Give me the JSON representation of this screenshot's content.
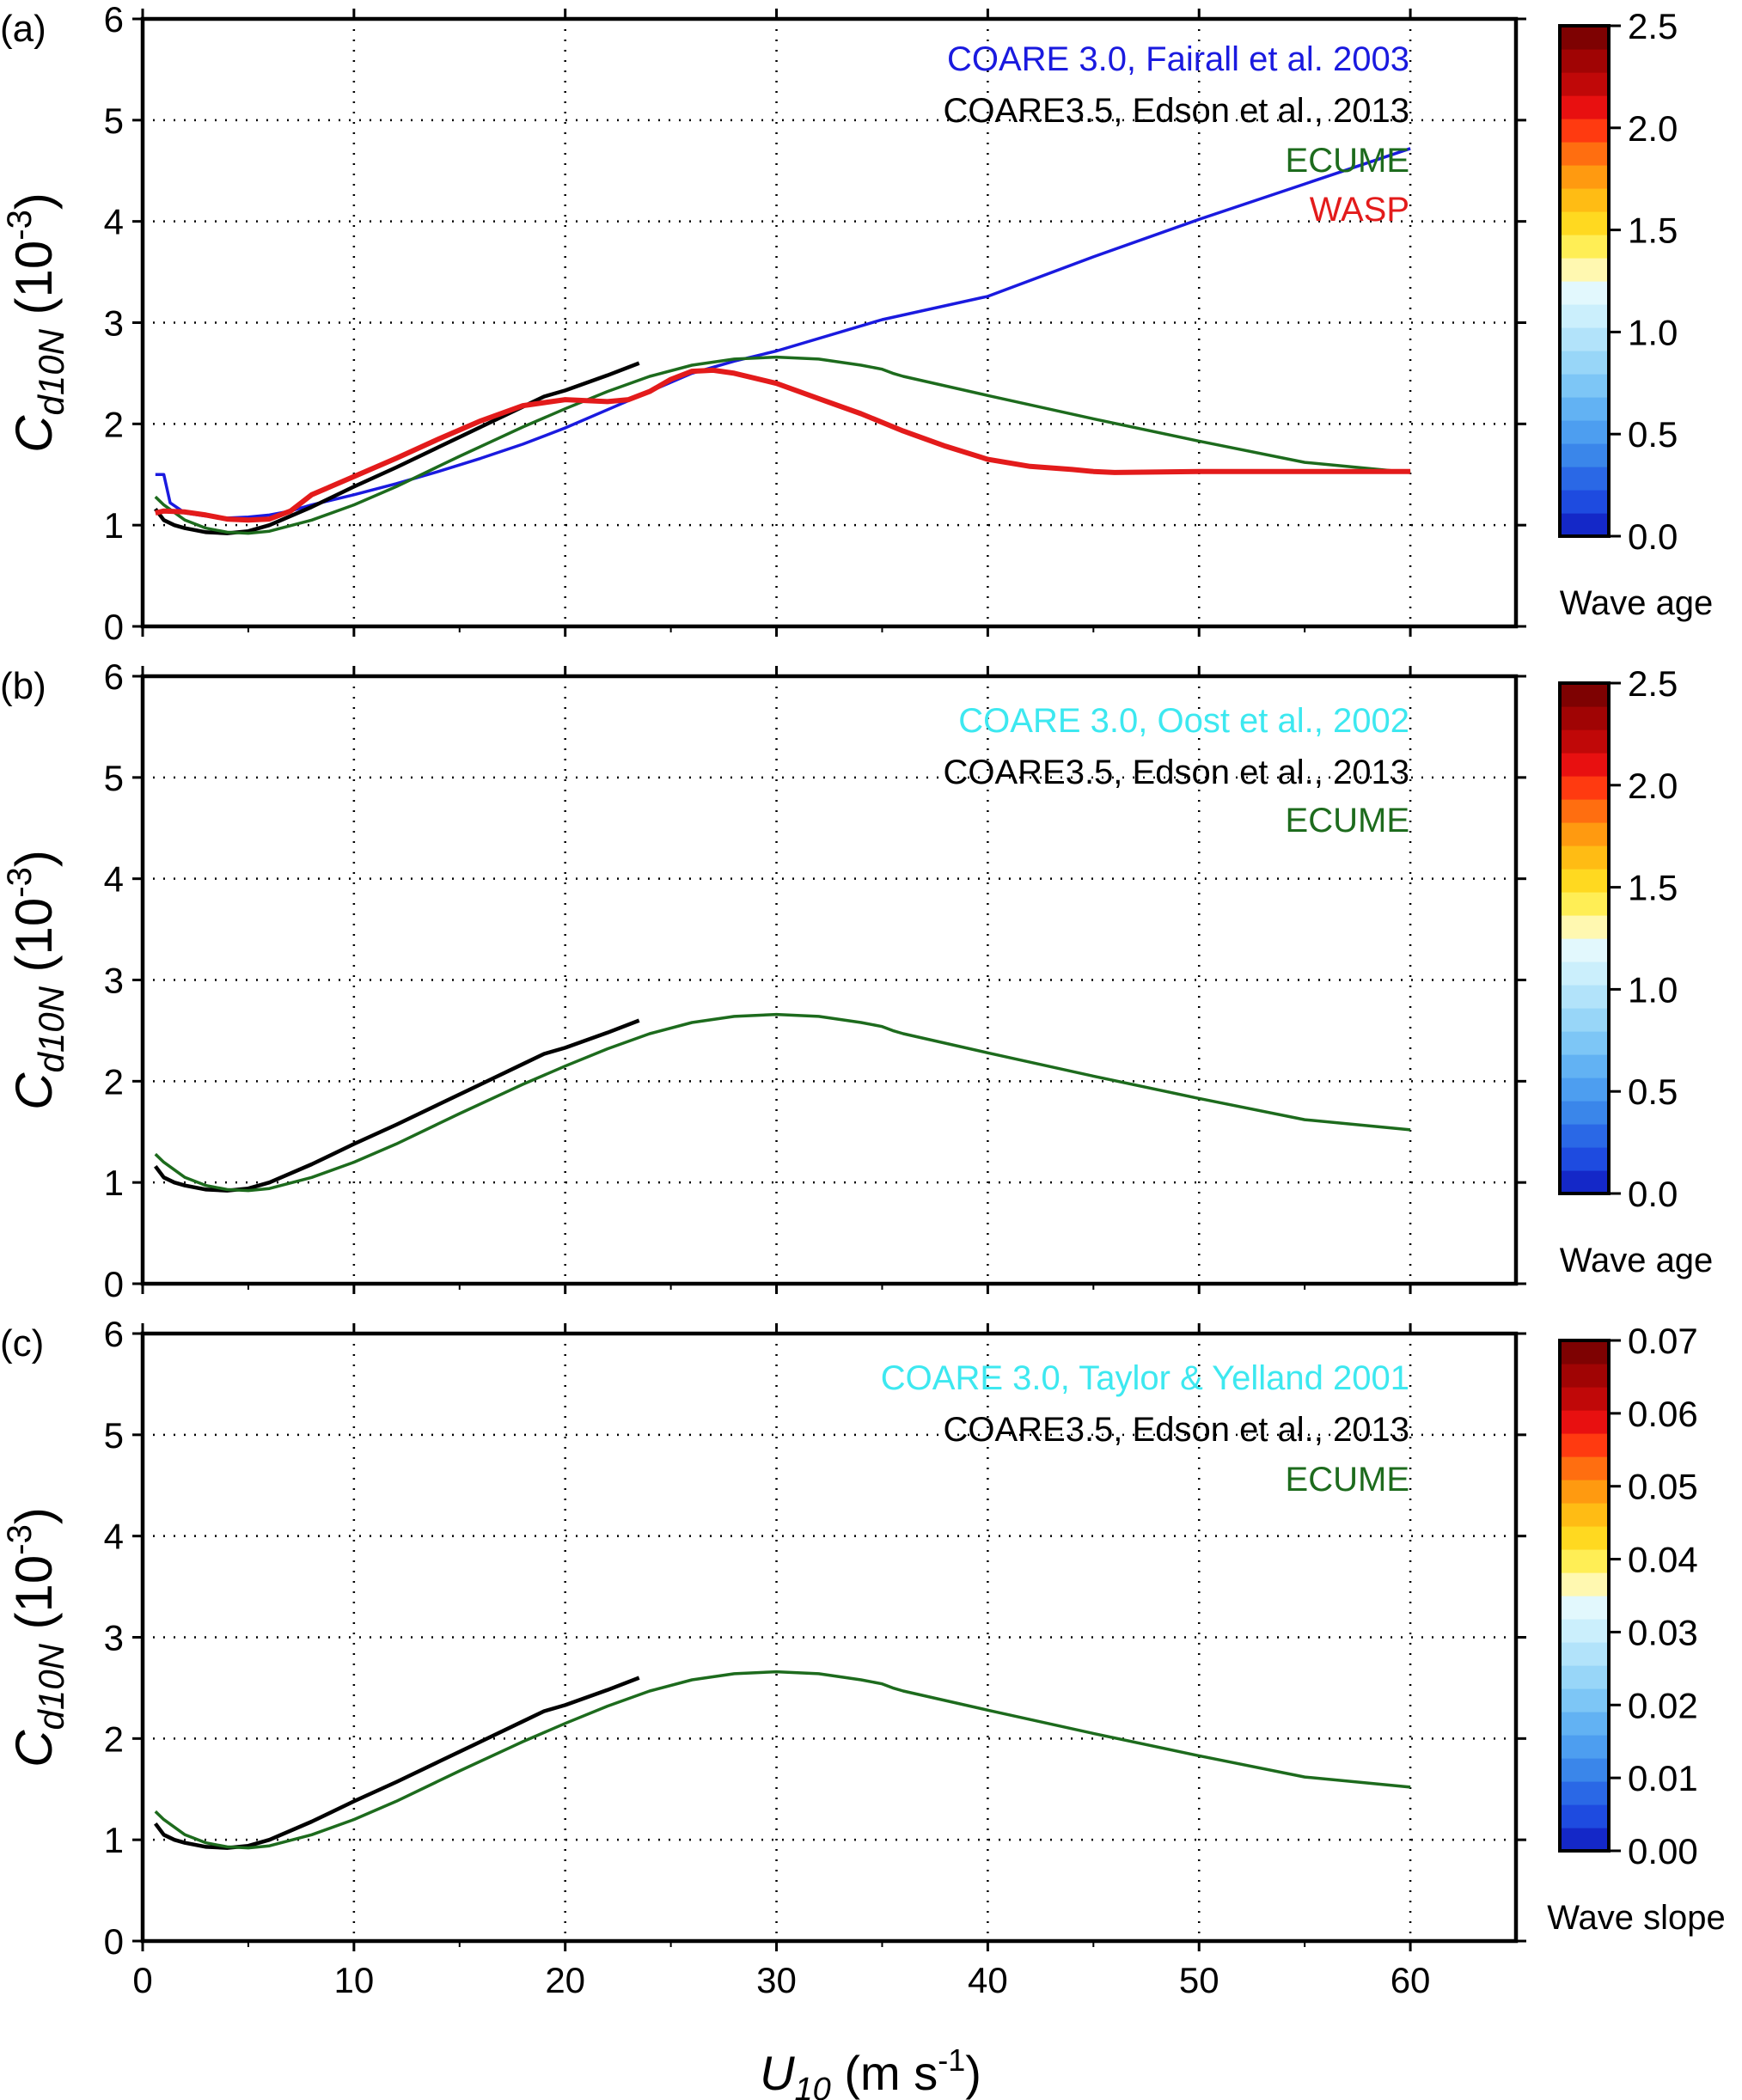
{
  "figure": {
    "xlabel_main": "U",
    "xlabel_sub": "10",
    "xlabel_unit": "(m s",
    "xlabel_unit_sup": "-1",
    "xlabel_unit_close": ")",
    "ylabel_main": "C",
    "ylabel_sub": "d10N",
    "ylabel_unit": "(10",
    "ylabel_unit_sup": "-3",
    "ylabel_unit_close": ")"
  },
  "chart_data": [
    {
      "type": "scatter",
      "panel_label": "(a)",
      "xlim": [
        0,
        65
      ],
      "ylim": [
        0,
        6
      ],
      "x_ticks": [
        0,
        10,
        20,
        30,
        40,
        50,
        60
      ],
      "y_ticks": [
        0,
        1,
        2,
        3,
        4,
        5,
        6
      ],
      "grid": true,
      "legend_placement": "top-right",
      "colorbar": {
        "label": "Wave age",
        "range": [
          0,
          2.5
        ],
        "tick_labels": [
          "0.0",
          "0.5",
          "1.0",
          "1.5",
          "2.0",
          "2.5"
        ],
        "colors": [
          "#1428c8",
          "#1e4be0",
          "#2a68e6",
          "#3a86ea",
          "#4d9ef0",
          "#62b2f3",
          "#7dc6f6",
          "#98d6f8",
          "#b2e3fa",
          "#cbeffc",
          "#e2f8fd",
          "#fff8b0",
          "#ffee55",
          "#ffd920",
          "#ffbc14",
          "#ff9a10",
          "#ff6e10",
          "#ff3a10",
          "#e81010",
          "#c00808",
          "#a00404",
          "#7e0202"
        ]
      },
      "series": [
        {
          "name": "COARE 3.0, Fairall et al. 2003",
          "color": "#1a1adf",
          "x": [
            0.6,
            1.0,
            1.3,
            2,
            3,
            4,
            5,
            6,
            7,
            8,
            10,
            12,
            14,
            16,
            18,
            20,
            22,
            24,
            26,
            28,
            30,
            35,
            40,
            45,
            50,
            55,
            60
          ],
          "y": [
            1.5,
            1.5,
            1.22,
            1.12,
            1.09,
            1.07,
            1.08,
            1.1,
            1.14,
            1.2,
            1.3,
            1.41,
            1.53,
            1.66,
            1.8,
            1.96,
            2.14,
            2.32,
            2.5,
            2.62,
            2.72,
            3.03,
            3.26,
            3.65,
            4.02,
            4.37,
            4.72
          ]
        },
        {
          "name": "COARE3.5, Edson et al., 2013",
          "color": "#000000",
          "x": [
            0.6,
            1,
            1.5,
            2,
            3,
            4,
            5,
            6,
            8,
            10,
            12,
            14,
            16,
            18,
            19,
            20,
            22,
            23.5
          ],
          "y": [
            1.16,
            1.05,
            1.0,
            0.97,
            0.93,
            0.92,
            0.94,
            1.0,
            1.18,
            1.38,
            1.57,
            1.77,
            1.97,
            2.17,
            2.27,
            2.33,
            2.48,
            2.6
          ]
        },
        {
          "name": "ECUME",
          "color": "#1d6b1d",
          "x": [
            0.6,
            1,
            2,
            3,
            4,
            5,
            6,
            8,
            10,
            12,
            15,
            18,
            20,
            22,
            24,
            26,
            28,
            30,
            32,
            34,
            35,
            35.5,
            36,
            40,
            45,
            50,
            55,
            60
          ],
          "y": [
            1.28,
            1.2,
            1.05,
            0.97,
            0.93,
            0.92,
            0.94,
            1.05,
            1.2,
            1.38,
            1.68,
            1.97,
            2.15,
            2.32,
            2.47,
            2.58,
            2.64,
            2.66,
            2.64,
            2.58,
            2.54,
            2.5,
            2.47,
            2.28,
            2.05,
            1.83,
            1.62,
            1.52
          ]
        },
        {
          "name": "WASP",
          "color": "#e31b1b",
          "x": [
            0.6,
            1,
            2,
            3,
            4,
            5,
            6,
            7,
            8,
            10,
            12,
            14,
            16,
            18,
            20,
            22,
            23,
            24,
            25,
            26,
            27,
            28,
            30,
            32,
            34,
            36,
            38,
            40,
            42,
            44,
            45,
            46,
            50,
            55,
            60
          ],
          "y": [
            1.12,
            1.14,
            1.13,
            1.1,
            1.06,
            1.05,
            1.06,
            1.14,
            1.3,
            1.48,
            1.66,
            1.85,
            2.03,
            2.18,
            2.24,
            2.22,
            2.24,
            2.32,
            2.44,
            2.52,
            2.53,
            2.5,
            2.4,
            2.25,
            2.1,
            1.93,
            1.78,
            1.65,
            1.58,
            1.55,
            1.53,
            1.52,
            1.53,
            1.53,
            1.53
          ]
        }
      ]
    },
    {
      "type": "scatter",
      "panel_label": "(b)",
      "xlim": [
        0,
        65
      ],
      "ylim": [
        0,
        6
      ],
      "x_ticks": [
        0,
        10,
        20,
        30,
        40,
        50,
        60
      ],
      "y_ticks": [
        0,
        1,
        2,
        3,
        4,
        5,
        6
      ],
      "grid": true,
      "legend_placement": "top-right",
      "colorbar": {
        "label": "Wave age",
        "range": [
          0,
          2.5
        ],
        "tick_labels": [
          "0.0",
          "0.5",
          "1.0",
          "1.5",
          "2.0",
          "2.5"
        ],
        "colors": [
          "#1428c8",
          "#1e4be0",
          "#2a68e6",
          "#3a86ea",
          "#4d9ef0",
          "#62b2f3",
          "#7dc6f6",
          "#98d6f8",
          "#b2e3fa",
          "#cbeffc",
          "#e2f8fd",
          "#fff8b0",
          "#ffee55",
          "#ffd920",
          "#ffbc14",
          "#ff9a10",
          "#ff6e10",
          "#ff3a10",
          "#e81010",
          "#c00808",
          "#a00404",
          "#7e0202"
        ]
      },
      "series": [
        {
          "name": "COARE 3.0, Oost et al., 2002",
          "color": "#3de8f0",
          "x": [],
          "y": []
        },
        {
          "name": "COARE3.5, Edson et al., 2013",
          "color": "#000000",
          "x": [
            0.6,
            1,
            1.5,
            2,
            3,
            4,
            5,
            6,
            8,
            10,
            12,
            14,
            16,
            18,
            19,
            20,
            22,
            23.5
          ],
          "y": [
            1.16,
            1.05,
            1.0,
            0.97,
            0.93,
            0.92,
            0.94,
            1.0,
            1.18,
            1.38,
            1.57,
            1.77,
            1.97,
            2.17,
            2.27,
            2.33,
            2.48,
            2.6
          ]
        },
        {
          "name": "ECUME",
          "color": "#1d6b1d",
          "x": [
            0.6,
            1,
            2,
            3,
            4,
            5,
            6,
            8,
            10,
            12,
            15,
            18,
            20,
            22,
            24,
            26,
            28,
            30,
            32,
            34,
            35,
            35.5,
            36,
            40,
            45,
            50,
            55,
            60
          ],
          "y": [
            1.28,
            1.2,
            1.05,
            0.97,
            0.93,
            0.92,
            0.94,
            1.05,
            1.2,
            1.38,
            1.68,
            1.97,
            2.15,
            2.32,
            2.47,
            2.58,
            2.64,
            2.66,
            2.64,
            2.58,
            2.54,
            2.5,
            2.47,
            2.28,
            2.05,
            1.83,
            1.62,
            1.52
          ]
        }
      ]
    },
    {
      "type": "scatter",
      "panel_label": "(c)",
      "xlim": [
        0,
        65
      ],
      "ylim": [
        0,
        6
      ],
      "x_ticks": [
        0,
        10,
        20,
        30,
        40,
        50,
        60
      ],
      "y_ticks": [
        0,
        1,
        2,
        3,
        4,
        5,
        6
      ],
      "grid": true,
      "legend_placement": "top-right",
      "colorbar": {
        "label": "Wave slope",
        "range": [
          0,
          0.07
        ],
        "tick_labels": [
          "0.00",
          "0.01",
          "0.02",
          "0.03",
          "0.04",
          "0.05",
          "0.06",
          "0.07"
        ],
        "colors": [
          "#1428c8",
          "#1e4be0",
          "#2a68e6",
          "#3a86ea",
          "#4d9ef0",
          "#62b2f3",
          "#7dc6f6",
          "#98d6f8",
          "#b2e3fa",
          "#cbeffc",
          "#e2f8fd",
          "#fff8b0",
          "#ffee55",
          "#ffd920",
          "#ffbc14",
          "#ff9a10",
          "#ff6e10",
          "#ff3a10",
          "#e81010",
          "#c00808",
          "#a00404",
          "#7e0202"
        ]
      },
      "series": [
        {
          "name": "COARE 3.0, Taylor & Yelland 2001",
          "color": "#3de8f0",
          "x": [],
          "y": []
        },
        {
          "name": "COARE3.5, Edson et al., 2013",
          "color": "#000000",
          "x": [
            0.6,
            1,
            1.5,
            2,
            3,
            4,
            5,
            6,
            8,
            10,
            12,
            14,
            16,
            18,
            19,
            20,
            22,
            23.5
          ],
          "y": [
            1.16,
            1.05,
            1.0,
            0.97,
            0.93,
            0.92,
            0.94,
            1.0,
            1.18,
            1.38,
            1.57,
            1.77,
            1.97,
            2.17,
            2.27,
            2.33,
            2.48,
            2.6
          ]
        },
        {
          "name": "ECUME",
          "color": "#1d6b1d",
          "x": [
            0.6,
            1,
            2,
            3,
            4,
            5,
            6,
            8,
            10,
            12,
            15,
            18,
            20,
            22,
            24,
            26,
            28,
            30,
            32,
            34,
            35,
            35.5,
            36,
            40,
            45,
            50,
            55,
            60
          ],
          "y": [
            1.28,
            1.2,
            1.05,
            0.97,
            0.93,
            0.92,
            0.94,
            1.05,
            1.2,
            1.38,
            1.68,
            1.97,
            2.15,
            2.32,
            2.47,
            2.58,
            2.64,
            2.66,
            2.64,
            2.58,
            2.54,
            2.5,
            2.47,
            2.28,
            2.05,
            1.83,
            1.62,
            1.52
          ]
        }
      ]
    }
  ]
}
